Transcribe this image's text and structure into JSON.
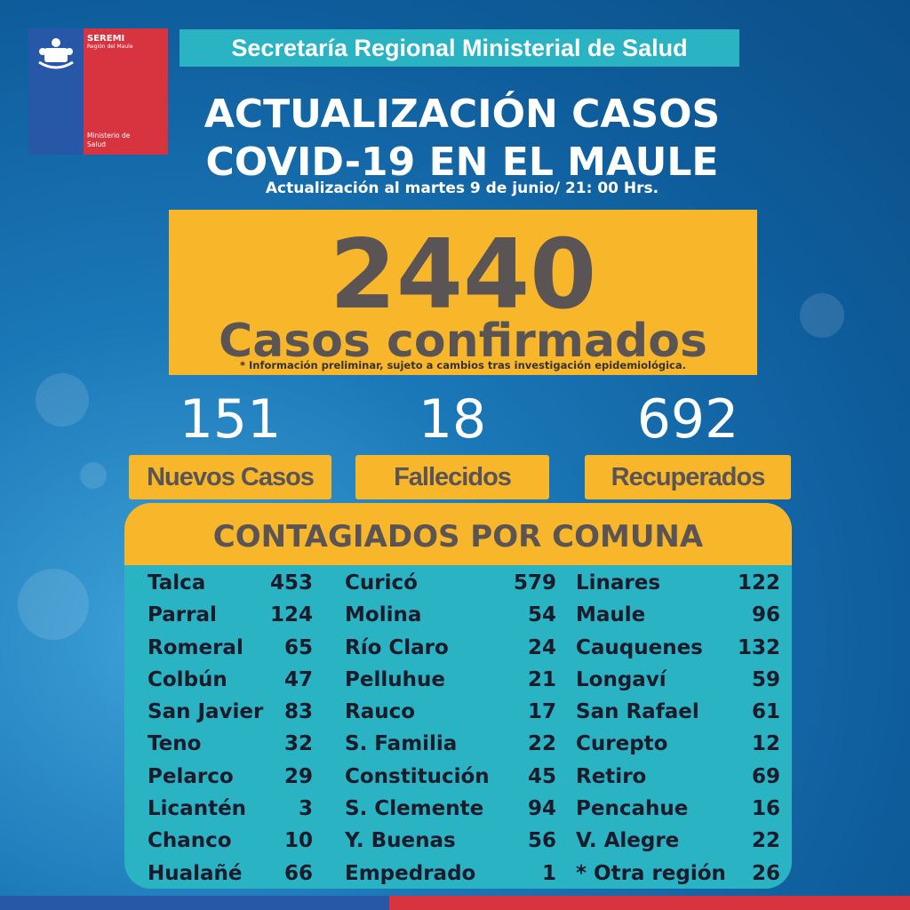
{
  "logo": {
    "seremi": "SEREMI",
    "region": "Región del Maule",
    "ministerio": "Ministerio de\nSalud",
    "colors": {
      "blue": "#2758a8",
      "red": "#d7343f"
    }
  },
  "banner": "Secretaría Regional Ministerial de Salud",
  "title": {
    "line1": "ACTUALIZACIÓN CASOS",
    "line2": "COVID-19 EN EL MAULE"
  },
  "update": "Actualización al martes 9 de junio/ 21: 00 Hrs.",
  "total": {
    "number": "2440",
    "label": "Casos confirmados",
    "disclaimer": "* Información preliminar, sujeto a cambios tras investigación  epidemiológica."
  },
  "stats": [
    {
      "number": "151",
      "label": "Nuevos Casos"
    },
    {
      "number": "18",
      "label": "Fallecidos"
    },
    {
      "number": "692",
      "label": "Recuperados"
    }
  ],
  "comunas": {
    "header": "CONTAGIADOS POR COMUNA",
    "columns": [
      [
        {
          "name": "Talca",
          "value": "453"
        },
        {
          "name": "Parral",
          "value": "124"
        },
        {
          "name": "Romeral",
          "value": "65"
        },
        {
          "name": "Colbún",
          "value": "47"
        },
        {
          "name": "San Javier",
          "value": "83"
        },
        {
          "name": "Teno",
          "value": "32"
        },
        {
          "name": "Pelarco",
          "value": "29"
        },
        {
          "name": "Licantén",
          "value": "3"
        },
        {
          "name": "Chanco",
          "value": "10"
        },
        {
          "name": "Hualañé",
          "value": "66"
        }
      ],
      [
        {
          "name": "Curicó",
          "value": "579"
        },
        {
          "name": "Molina",
          "value": "54"
        },
        {
          "name": "Río Claro",
          "value": "24"
        },
        {
          "name": "Pelluhue",
          "value": "21"
        },
        {
          "name": "Rauco",
          "value": "17"
        },
        {
          "name": "S. Familia",
          "value": "22"
        },
        {
          "name": "Constitución",
          "value": "45"
        },
        {
          "name": "S. Clemente",
          "value": "94"
        },
        {
          "name": "Y. Buenas",
          "value": "56"
        },
        {
          "name": "Empedrado",
          "value": "1"
        }
      ],
      [
        {
          "name": "Linares",
          "value": "122"
        },
        {
          "name": "Maule",
          "value": "96"
        },
        {
          "name": "Cauquenes",
          "value": "132"
        },
        {
          "name": "Longaví",
          "value": "59"
        },
        {
          "name": "San Rafael",
          "value": "61"
        },
        {
          "name": "Curepto",
          "value": "12"
        },
        {
          "name": "Retiro",
          "value": "69"
        },
        {
          "name": "Pencahue",
          "value": "16"
        },
        {
          "name": "V. Alegre",
          "value": "22"
        },
        {
          "name": "* Otra región",
          "value": "26"
        }
      ]
    ]
  },
  "colors": {
    "yellow": "#f8b72b",
    "teal": "#2ab4c3",
    "background": "#1b78b8"
  }
}
